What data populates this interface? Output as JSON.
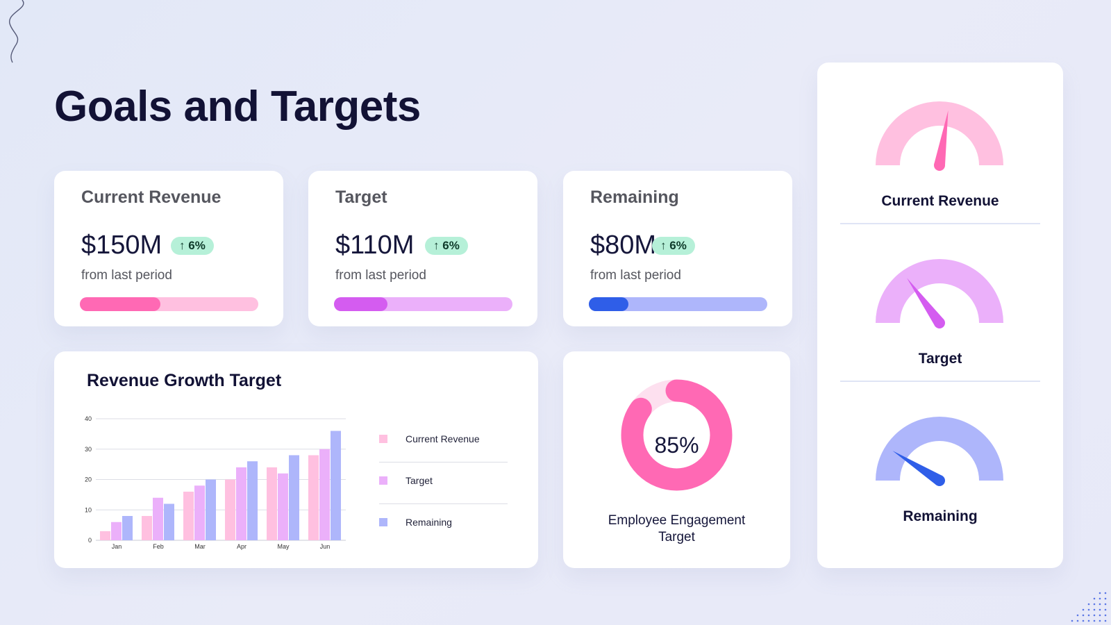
{
  "page": {
    "title": "Goals and Targets"
  },
  "colors": {
    "background": "#e4e8f8",
    "pink": "#ff69b4",
    "pink_light": "#ffc0e0",
    "violet": "#d45cf0",
    "violet_light": "#ebb0fa",
    "blue": "#2f5ee8",
    "blue_light": "#aeb6fb",
    "badge_bg": "#b6f0d8"
  },
  "stats": [
    {
      "title": "Current Revenue",
      "value": "$150M",
      "change": "6%",
      "subtitle": "from last period",
      "progress": 0.45
    },
    {
      "title": "Target",
      "value": "$110M",
      "change": "6%",
      "subtitle": "from last period",
      "progress": 0.3
    },
    {
      "title": "Remaining",
      "value": "$80M",
      "change": "6%",
      "subtitle": "from last period",
      "progress": 0.22
    }
  ],
  "chart_data": {
    "type": "bar",
    "title": "Revenue Growth Target",
    "categories": [
      "Jan",
      "Feb",
      "Mar",
      "Apr",
      "May",
      "Jun"
    ],
    "series": [
      {
        "name": "Current Revenue",
        "values": [
          3,
          8,
          16,
          20,
          24,
          28
        ]
      },
      {
        "name": "Target",
        "values": [
          6,
          14,
          18,
          24,
          22,
          30
        ]
      },
      {
        "name": "Remaining",
        "values": [
          8,
          12,
          20,
          26,
          28,
          36
        ]
      }
    ],
    "ylim": [
      0,
      40
    ],
    "yticks": [
      0,
      10,
      20,
      30,
      40
    ],
    "grid": true,
    "legend_position": "right"
  },
  "engagement": {
    "value_label": "85%",
    "value": 0.85,
    "caption": "Employee Engagement Target"
  },
  "gauges": [
    {
      "label": "Current Revenue",
      "needle_value": 0.55
    },
    {
      "label": "Target",
      "needle_value": 0.3
    },
    {
      "label": "Remaining",
      "needle_value": 0.18
    }
  ]
}
